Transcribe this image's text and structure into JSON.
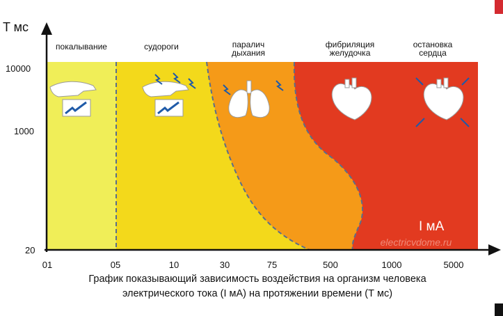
{
  "diagram": {
    "y_axis_label": "T мс",
    "x_axis_label": "I мА",
    "y_ticks": [
      "10000",
      "1000",
      "20"
    ],
    "x_ticks": [
      "01",
      "05",
      "10",
      "30",
      "75",
      "500",
      "1000",
      "5000"
    ],
    "zones": [
      {
        "line1": "покалывание",
        "line2": "",
        "color": "#f0ee58"
      },
      {
        "line1": "судороги",
        "line2": "",
        "color": "#f3d91b"
      },
      {
        "line1": "паралич",
        "line2": "дыхания",
        "color": "#f59a18"
      },
      {
        "line1": "фибриляция",
        "line2": "желудочка",
        "color": "#e23a20"
      },
      {
        "line1": "остановка",
        "line2": "сердца",
        "color": "#e23a20"
      }
    ],
    "watermark": "electricvdome.ru",
    "boundary_color": "#5a6e8c"
  },
  "caption": {
    "line1": "График показывающий зависимость воздействия на организм человека",
    "line2": "электрического тока (I мА) на протяжении времени (Т мс)"
  }
}
